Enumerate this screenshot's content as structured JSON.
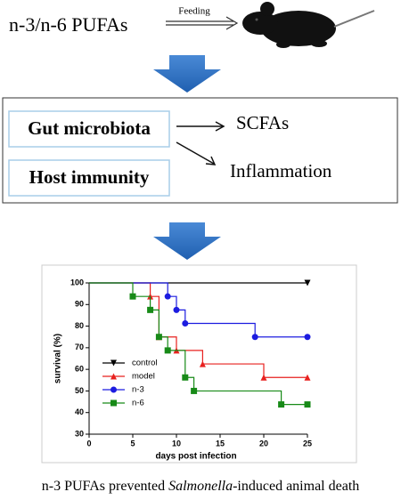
{
  "header": {
    "title": "n-3/n-6 PUFAs",
    "arrow_label": "Feeding"
  },
  "mechanism": {
    "boxes": [
      "Gut microbiota",
      "Host immunity"
    ],
    "outcomes": [
      "SCFAs",
      "Inflammation"
    ]
  },
  "chart_data": {
    "type": "line",
    "step": true,
    "xlabel": "days post infection",
    "ylabel": "survival (%)",
    "xlim": [
      0,
      25
    ],
    "ylim": [
      30,
      100
    ],
    "xticks": [
      0,
      5,
      10,
      15,
      20,
      25
    ],
    "yticks": [
      30,
      40,
      50,
      60,
      70,
      80,
      90,
      100
    ],
    "series": [
      {
        "name": "control",
        "color": "#000000",
        "marker": "triangle-down",
        "x": [
          0,
          25
        ],
        "values": [
          100,
          100
        ]
      },
      {
        "name": "model",
        "color": "#e8211f",
        "marker": "triangle-up",
        "x": [
          0,
          7,
          8,
          10,
          13,
          20,
          25
        ],
        "values": [
          100,
          93.75,
          75,
          68.75,
          62.5,
          56.25,
          56.25
        ]
      },
      {
        "name": "n-3",
        "color": "#1c1ce0",
        "marker": "circle",
        "x": [
          0,
          9,
          10,
          11,
          19,
          25
        ],
        "values": [
          100,
          93.75,
          87.5,
          81.25,
          75,
          75
        ]
      },
      {
        "name": "n-6",
        "color": "#178a17",
        "marker": "square",
        "x": [
          0,
          5,
          7,
          8,
          9,
          11,
          12,
          22,
          25
        ],
        "values": [
          100,
          93.75,
          87.5,
          75,
          68.75,
          56.25,
          50,
          43.75,
          43.75
        ]
      }
    ]
  },
  "caption": {
    "before": "n-3 PUFAs prevented ",
    "italic": "Salmonella",
    "after": "-induced animal death"
  }
}
